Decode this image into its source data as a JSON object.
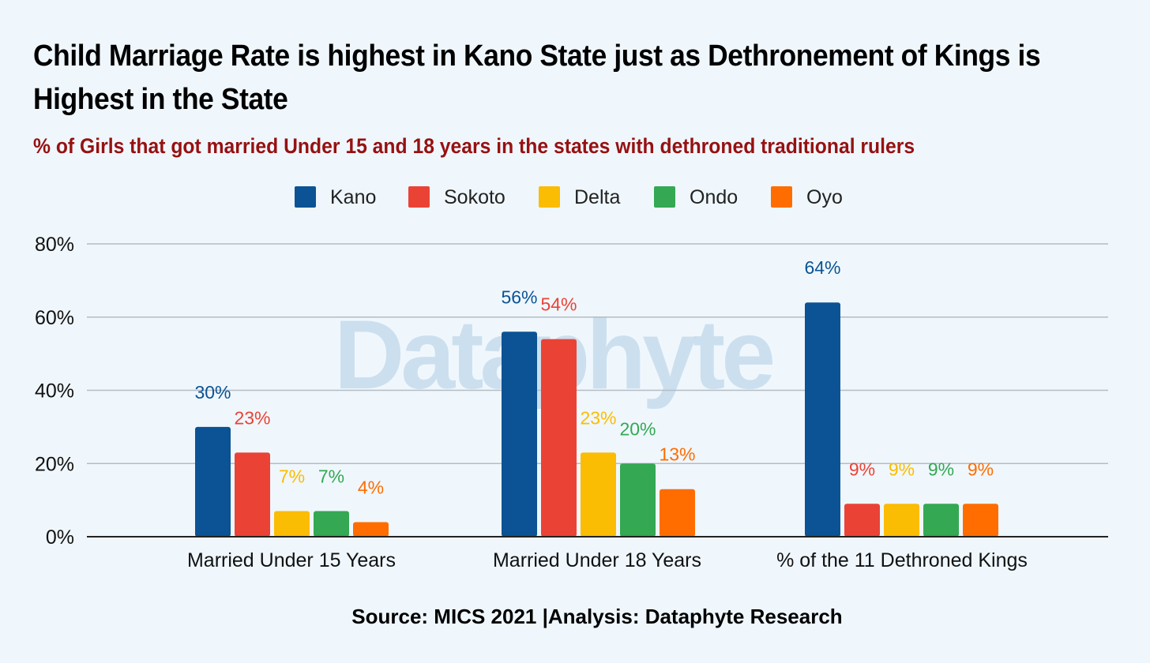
{
  "header": {
    "title": "Child Marriage Rate is highest in Kano State just as Dethronement of Kings is Highest in the State",
    "subtitle": "% of Girls that got married Under 15 and 18 years in the states with dethroned traditional rulers"
  },
  "watermark": "Dataphyte",
  "footer": {
    "source": "Source: MICS 2021 |Analysis: Dataphyte Research"
  },
  "chart_data": {
    "type": "bar",
    "categories": [
      "Married Under 15 Years",
      "Married Under 18 Years",
      "% of the 11 Dethroned Kings"
    ],
    "series": [
      {
        "name": "Kano",
        "color": "#0b5394",
        "values": [
          30,
          56,
          64
        ],
        "labels": [
          "30%",
          "56%",
          "64%"
        ]
      },
      {
        "name": "Sokoto",
        "color": "#ea4335",
        "values": [
          23,
          54,
          9
        ],
        "labels": [
          "23%",
          "54%",
          "9%"
        ]
      },
      {
        "name": "Delta",
        "color": "#fbbc04",
        "values": [
          7,
          23,
          9
        ],
        "labels": [
          "7%",
          "23%",
          "9%"
        ]
      },
      {
        "name": "Ondo",
        "color": "#34a853",
        "values": [
          7,
          20,
          9
        ],
        "labels": [
          "7%",
          "20%",
          "9%"
        ]
      },
      {
        "name": "Oyo",
        "color": "#ff6d01",
        "values": [
          4,
          13,
          9
        ],
        "labels": [
          "4%",
          "13%",
          "9%"
        ]
      }
    ],
    "yticks": [
      "0%",
      "20%",
      "40%",
      "60%",
      "80%"
    ],
    "ylim": [
      0,
      80
    ],
    "grid": true,
    "legend": "top-center"
  }
}
